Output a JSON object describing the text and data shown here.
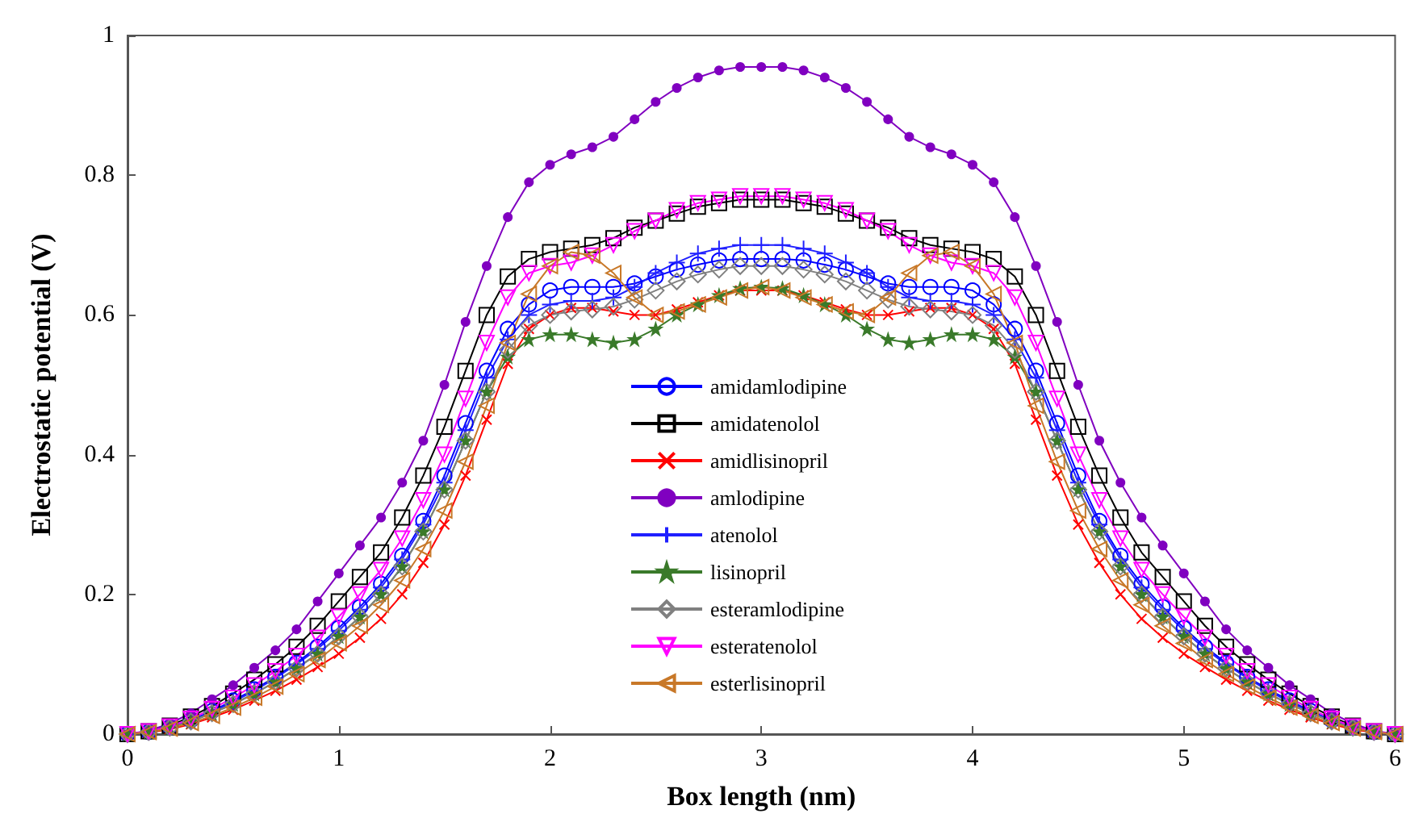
{
  "chart_data": {
    "type": "line",
    "xlabel": "Box length (nm)",
    "ylabel": "Electrostatic potential (V)",
    "x": [
      0,
      0.1,
      0.2,
      0.3,
      0.4,
      0.5,
      0.6,
      0.7,
      0.8,
      0.9,
      1,
      1.1,
      1.2,
      1.3,
      1.4,
      1.5,
      1.6,
      1.7,
      1.8,
      1.9,
      2,
      2.1,
      2.2,
      2.3,
      2.4,
      2.5,
      2.6,
      2.7,
      2.8,
      2.9,
      3,
      3.1,
      3.2,
      3.3,
      3.4,
      3.5,
      3.6,
      3.7,
      3.8,
      3.9,
      4,
      4.1,
      4.2,
      4.3,
      4.4,
      4.5,
      4.6,
      4.7,
      4.8,
      4.9,
      5,
      5.1,
      5.2,
      5.3,
      5.4,
      5.5,
      5.6,
      5.7,
      5.8,
      5.9,
      6
    ],
    "xlim": [
      0,
      6
    ],
    "xticks": [
      0,
      1,
      2,
      3,
      4,
      5,
      6
    ],
    "ylim": [
      0,
      1
    ],
    "yticks": [
      0,
      0.2,
      0.4,
      0.6,
      0.8,
      1
    ],
    "grid": false,
    "legend": "center",
    "series": [
      {
        "name": "amidamlodipine",
        "color": "#0000ff",
        "marker": "circle",
        "values": [
          0,
          0.003,
          0.01,
          0.02,
          0.033,
          0.048,
          0.064,
          0.082,
          0.102,
          0.125,
          0.152,
          0.182,
          0.215,
          0.255,
          0.305,
          0.37,
          0.445,
          0.52,
          0.58,
          0.615,
          0.635,
          0.64,
          0.64,
          0.64,
          0.645,
          0.655,
          0.665,
          0.672,
          0.678,
          0.68,
          0.68,
          0.68,
          0.678,
          0.672,
          0.665,
          0.655,
          0.645,
          0.64,
          0.64,
          0.64,
          0.635,
          0.615,
          0.58,
          0.52,
          0.445,
          0.37,
          0.305,
          0.255,
          0.215,
          0.182,
          0.152,
          0.125,
          0.102,
          0.082,
          0.064,
          0.048,
          0.033,
          0.02,
          0.01,
          0.003,
          0
        ]
      },
      {
        "name": "amidatenolol",
        "color": "#000000",
        "marker": "square",
        "values": [
          0,
          0.004,
          0.012,
          0.025,
          0.04,
          0.058,
          0.078,
          0.1,
          0.125,
          0.155,
          0.19,
          0.225,
          0.26,
          0.31,
          0.37,
          0.44,
          0.52,
          0.6,
          0.655,
          0.68,
          0.69,
          0.695,
          0.7,
          0.71,
          0.725,
          0.735,
          0.745,
          0.755,
          0.76,
          0.765,
          0.765,
          0.765,
          0.76,
          0.755,
          0.745,
          0.735,
          0.725,
          0.71,
          0.7,
          0.695,
          0.69,
          0.68,
          0.655,
          0.6,
          0.52,
          0.44,
          0.37,
          0.31,
          0.26,
          0.225,
          0.19,
          0.155,
          0.125,
          0.1,
          0.078,
          0.058,
          0.04,
          0.025,
          0.012,
          0.004,
          0
        ]
      },
      {
        "name": "amidlisinopril",
        "color": "#ff0000",
        "marker": "x",
        "values": [
          0,
          0.002,
          0.007,
          0.014,
          0.024,
          0.035,
          0.048,
          0.062,
          0.078,
          0.096,
          0.115,
          0.138,
          0.165,
          0.2,
          0.245,
          0.3,
          0.37,
          0.45,
          0.53,
          0.58,
          0.6,
          0.61,
          0.61,
          0.605,
          0.6,
          0.6,
          0.608,
          0.618,
          0.628,
          0.635,
          0.635,
          0.635,
          0.628,
          0.618,
          0.608,
          0.6,
          0.6,
          0.605,
          0.61,
          0.61,
          0.6,
          0.58,
          0.53,
          0.45,
          0.37,
          0.3,
          0.245,
          0.2,
          0.165,
          0.138,
          0.115,
          0.096,
          0.078,
          0.062,
          0.048,
          0.035,
          0.024,
          0.014,
          0.007,
          0.002,
          0
        ]
      },
      {
        "name": "amlodipine",
        "color": "#8000c0",
        "marker": "dot",
        "values": [
          0,
          0.005,
          0.015,
          0.03,
          0.05,
          0.07,
          0.095,
          0.12,
          0.15,
          0.19,
          0.23,
          0.27,
          0.31,
          0.36,
          0.42,
          0.5,
          0.59,
          0.67,
          0.74,
          0.79,
          0.815,
          0.83,
          0.84,
          0.855,
          0.88,
          0.905,
          0.925,
          0.94,
          0.95,
          0.955,
          0.955,
          0.955,
          0.95,
          0.94,
          0.925,
          0.905,
          0.88,
          0.855,
          0.84,
          0.83,
          0.815,
          0.79,
          0.74,
          0.67,
          0.59,
          0.5,
          0.42,
          0.36,
          0.31,
          0.27,
          0.23,
          0.19,
          0.15,
          0.12,
          0.095,
          0.07,
          0.05,
          0.03,
          0.015,
          0.005,
          0
        ]
      },
      {
        "name": "atenolol",
        "color": "#2020ff",
        "marker": "plus",
        "values": [
          0,
          0.003,
          0.01,
          0.02,
          0.032,
          0.046,
          0.062,
          0.08,
          0.1,
          0.122,
          0.148,
          0.178,
          0.21,
          0.25,
          0.3,
          0.36,
          0.435,
          0.51,
          0.565,
          0.6,
          0.615,
          0.62,
          0.62,
          0.625,
          0.64,
          0.66,
          0.675,
          0.688,
          0.695,
          0.7,
          0.7,
          0.7,
          0.695,
          0.688,
          0.675,
          0.66,
          0.64,
          0.625,
          0.62,
          0.62,
          0.615,
          0.6,
          0.565,
          0.51,
          0.435,
          0.36,
          0.3,
          0.25,
          0.21,
          0.178,
          0.148,
          0.122,
          0.1,
          0.08,
          0.062,
          0.046,
          0.032,
          0.02,
          0.01,
          0.003,
          0
        ]
      },
      {
        "name": "lisinopril",
        "color": "#3a7a2a",
        "marker": "star",
        "values": [
          0,
          0.003,
          0.009,
          0.018,
          0.03,
          0.043,
          0.058,
          0.075,
          0.094,
          0.115,
          0.14,
          0.168,
          0.2,
          0.24,
          0.29,
          0.35,
          0.42,
          0.49,
          0.54,
          0.565,
          0.572,
          0.572,
          0.565,
          0.56,
          0.565,
          0.58,
          0.6,
          0.615,
          0.628,
          0.638,
          0.64,
          0.638,
          0.628,
          0.615,
          0.6,
          0.58,
          0.565,
          0.56,
          0.565,
          0.572,
          0.572,
          0.565,
          0.54,
          0.49,
          0.42,
          0.35,
          0.29,
          0.24,
          0.2,
          0.168,
          0.14,
          0.115,
          0.094,
          0.075,
          0.058,
          0.043,
          0.03,
          0.018,
          0.009,
          0.003,
          0
        ]
      },
      {
        "name": "esteramlodipine",
        "color": "#808080",
        "marker": "diamond",
        "values": [
          0,
          0.003,
          0.009,
          0.018,
          0.03,
          0.043,
          0.058,
          0.075,
          0.094,
          0.115,
          0.14,
          0.168,
          0.2,
          0.24,
          0.29,
          0.35,
          0.42,
          0.49,
          0.55,
          0.585,
          0.6,
          0.605,
          0.608,
          0.612,
          0.622,
          0.635,
          0.648,
          0.658,
          0.665,
          0.67,
          0.67,
          0.67,
          0.665,
          0.658,
          0.648,
          0.635,
          0.622,
          0.612,
          0.608,
          0.605,
          0.6,
          0.585,
          0.55,
          0.49,
          0.42,
          0.35,
          0.29,
          0.24,
          0.2,
          0.168,
          0.14,
          0.115,
          0.094,
          0.075,
          0.058,
          0.043,
          0.03,
          0.018,
          0.009,
          0.003,
          0
        ]
      },
      {
        "name": "esteratenolol",
        "color": "#ff00ff",
        "marker": "triangle-down",
        "values": [
          0,
          0.004,
          0.011,
          0.022,
          0.036,
          0.052,
          0.07,
          0.09,
          0.112,
          0.138,
          0.168,
          0.2,
          0.235,
          0.28,
          0.335,
          0.4,
          0.48,
          0.56,
          0.625,
          0.66,
          0.67,
          0.675,
          0.685,
          0.7,
          0.72,
          0.735,
          0.75,
          0.76,
          0.765,
          0.77,
          0.77,
          0.77,
          0.765,
          0.76,
          0.75,
          0.735,
          0.72,
          0.7,
          0.685,
          0.675,
          0.67,
          0.66,
          0.625,
          0.56,
          0.48,
          0.4,
          0.335,
          0.28,
          0.235,
          0.2,
          0.168,
          0.138,
          0.112,
          0.09,
          0.07,
          0.052,
          0.036,
          0.022,
          0.011,
          0.004,
          0
        ]
      },
      {
        "name": "esterlisinopril",
        "color": "#c87828",
        "marker": "triangle-left",
        "values": [
          0,
          0.003,
          0.008,
          0.016,
          0.026,
          0.038,
          0.052,
          0.068,
          0.086,
          0.106,
          0.13,
          0.155,
          0.185,
          0.22,
          0.265,
          0.32,
          0.39,
          0.47,
          0.56,
          0.63,
          0.67,
          0.69,
          0.685,
          0.66,
          0.625,
          0.6,
          0.605,
          0.615,
          0.625,
          0.635,
          0.64,
          0.635,
          0.625,
          0.615,
          0.605,
          0.6,
          0.625,
          0.66,
          0.685,
          0.69,
          0.67,
          0.63,
          0.56,
          0.47,
          0.39,
          0.32,
          0.265,
          0.22,
          0.185,
          0.155,
          0.13,
          0.106,
          0.086,
          0.068,
          0.052,
          0.038,
          0.026,
          0.016,
          0.008,
          0.003,
          0
        ]
      }
    ]
  }
}
